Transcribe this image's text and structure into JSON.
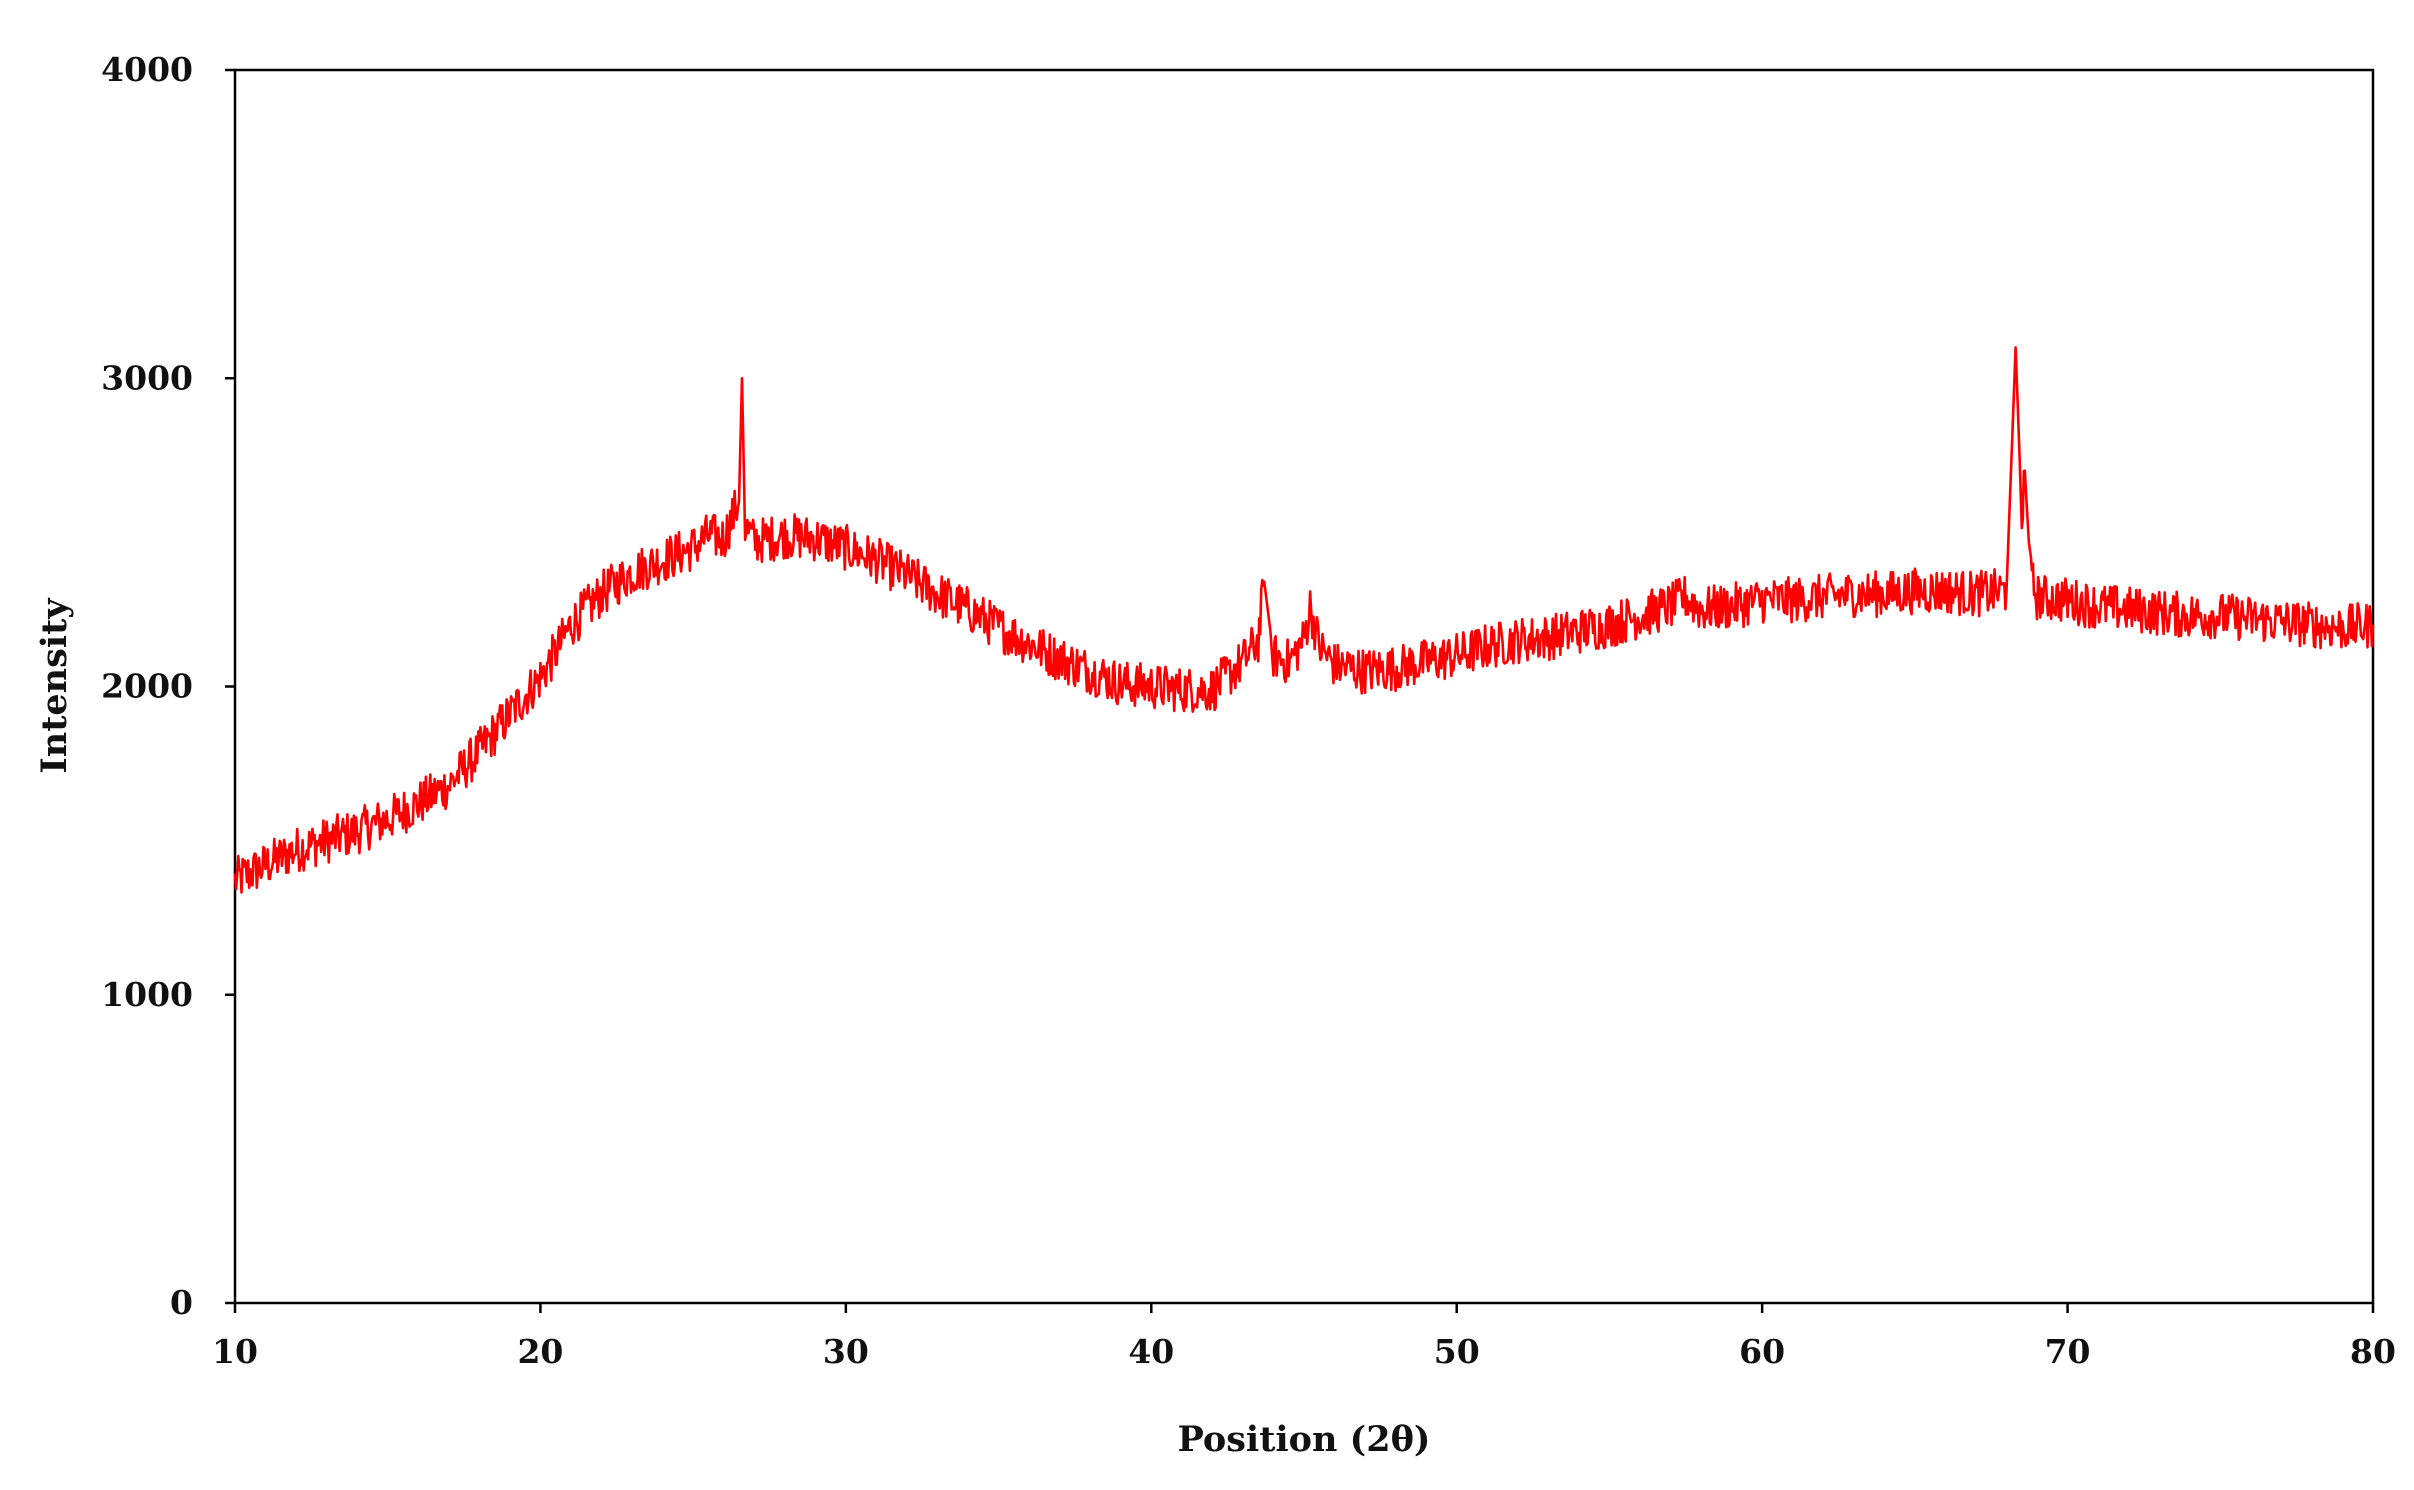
{
  "chart_data": {
    "type": "line",
    "title": "",
    "xlabel": "Position (2θ)",
    "ylabel": "Intensity",
    "xlim": [
      10,
      80
    ],
    "ylim": [
      0,
      4000
    ],
    "xticks": [
      10,
      20,
      30,
      40,
      50,
      60,
      70,
      80
    ],
    "yticks": [
      0,
      1000,
      2000,
      3000,
      4000
    ],
    "xtick_labels": [
      "10",
      "20",
      "30",
      "40",
      "50",
      "60",
      "70",
      "80"
    ],
    "ytick_labels": [
      "0",
      "1000",
      "2000",
      "3000",
      "4000"
    ],
    "grid": false,
    "legend": "none",
    "line_color": "#ff0000",
    "series": [
      {
        "x": [
          10,
          11,
          12,
          13,
          14,
          15,
          16,
          17,
          18,
          19,
          20,
          20.5,
          21,
          22,
          23,
          24,
          25,
          25.5,
          26,
          26.5,
          26.6,
          26.7,
          27,
          28,
          29,
          30,
          31,
          32,
          33,
          34,
          35,
          36,
          37,
          38,
          39,
          40,
          41,
          42,
          43,
          43.5,
          43.7,
          44,
          44.5,
          45,
          45.2,
          45.5,
          46,
          47,
          48,
          49,
          50,
          51,
          52,
          53,
          54,
          55,
          56,
          57,
          57.5,
          58,
          59,
          60,
          61,
          62,
          63,
          64,
          65,
          66,
          67,
          68,
          68.3,
          68.5,
          68.6,
          68.8,
          69,
          70,
          71,
          72,
          73,
          74,
          75,
          76,
          77,
          78,
          79,
          80
        ],
        "y": [
          1370,
          1420,
          1470,
          1500,
          1530,
          1570,
          1620,
          1680,
          1790,
          1910,
          2030,
          2110,
          2200,
          2300,
          2370,
          2410,
          2450,
          2490,
          2480,
          2600,
          3000,
          2520,
          2470,
          2490,
          2480,
          2450,
          2410,
          2360,
          2300,
          2250,
          2190,
          2140,
          2090,
          2050,
          2010,
          2000,
          1990,
          1990,
          2080,
          2150,
          2340,
          2100,
          2080,
          2150,
          2260,
          2130,
          2070,
          2050,
          2060,
          2080,
          2100,
          2130,
          2150,
          2160,
          2180,
          2200,
          2230,
          2260,
          2290,
          2250,
          2260,
          2280,
          2280,
          2290,
          2300,
          2300,
          2310,
          2310,
          2300,
          2310,
          3100,
          2550,
          2700,
          2350,
          2290,
          2280,
          2260,
          2250,
          2240,
          2230,
          2230,
          2220,
          2210,
          2200,
          2190,
          2200
        ]
      }
    ]
  }
}
